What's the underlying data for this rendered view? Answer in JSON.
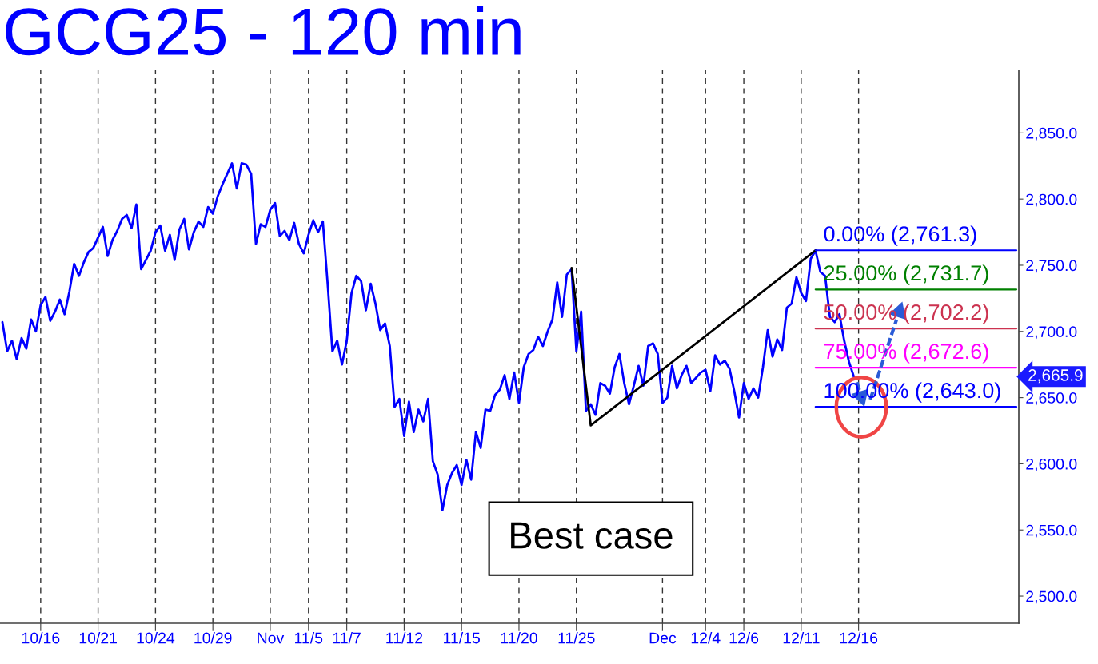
{
  "chart_data": {
    "type": "line",
    "title": "GCG25 - 120 min",
    "categories": [
      null,
      null,
      null,
      null,
      null,
      null,
      null,
      null,
      "10/16",
      null,
      null,
      null,
      null,
      null,
      null,
      null,
      null,
      null,
      null,
      null,
      "10/21",
      null,
      null,
      null,
      null,
      null,
      null,
      null,
      null,
      null,
      null,
      null,
      "10/24",
      null,
      null,
      null,
      null,
      null,
      null,
      null,
      null,
      null,
      null,
      null,
      "10/29",
      null,
      null,
      null,
      null,
      null,
      null,
      null,
      null,
      null,
      null,
      null,
      "Nov",
      null,
      null,
      null,
      null,
      null,
      null,
      null,
      "11/5",
      null,
      null,
      null,
      null,
      null,
      null,
      null,
      "11/7",
      null,
      null,
      null,
      null,
      null,
      null,
      null,
      null,
      null,
      null,
      null,
      "11/12",
      null,
      null,
      null,
      null,
      null,
      null,
      null,
      null,
      null,
      null,
      null,
      "11/15",
      null,
      null,
      null,
      null,
      null,
      null,
      null,
      null,
      null,
      null,
      null,
      "11/20",
      null,
      null,
      null,
      null,
      null,
      null,
      null,
      null,
      null,
      null,
      null,
      "11/25",
      null,
      null,
      null,
      null,
      null,
      null,
      null,
      null,
      null,
      null,
      null,
      null,
      null,
      null,
      null,
      null,
      null,
      "Dec",
      null,
      null,
      null,
      null,
      null,
      null,
      null,
      null,
      "12/4",
      null,
      null,
      null,
      null,
      null,
      null,
      null,
      "12/6",
      null,
      null,
      null,
      null,
      null,
      null,
      null,
      null,
      null,
      null,
      null,
      "12/11",
      null,
      null,
      null,
      null,
      null,
      null,
      null,
      null,
      null,
      null,
      null,
      "12/16",
      null,
      null,
      null,
      null,
      null,
      null,
      null,
      null,
      null,
      null,
      null,
      null,
      null,
      null,
      null,
      null,
      null,
      null,
      null,
      null,
      null,
      null,
      null,
      null,
      null,
      null,
      null,
      null,
      null,
      null,
      null,
      null,
      null
    ],
    "ylim": [
      2479.5,
      2897.3
    ],
    "yticks": [
      {
        "value": 2500,
        "label": "2,500.0"
      },
      {
        "value": 2550,
        "label": "2,550.0"
      },
      {
        "value": 2600,
        "label": "2,600.0"
      },
      {
        "value": 2650,
        "label": "2,650.0"
      },
      {
        "value": 2700,
        "label": "2,700.0"
      },
      {
        "value": 2750,
        "label": "2,750.0"
      },
      {
        "value": 2800,
        "label": "2,800.0"
      },
      {
        "value": 2850,
        "label": "2,850.0"
      }
    ],
    "grid": "x",
    "series": [
      {
        "color": "#0000ff",
        "values": [
          2707,
          2685,
          2693,
          2679,
          2695,
          2687,
          2709,
          2700,
          2720,
          2726,
          2708,
          2715,
          2724,
          2713,
          2730,
          2751,
          2742,
          2752,
          2760,
          2763,
          2771,
          2779,
          2757,
          2769,
          2776,
          2785,
          2788,
          2778,
          2796,
          2747,
          2754,
          2761,
          2775,
          2780,
          2761,
          2773,
          2754,
          2777,
          2785,
          2762,
          2775,
          2783,
          2779,
          2794,
          2789,
          2802,
          2811,
          2819,
          2827,
          2808,
          2827,
          2826,
          2819,
          2766,
          2781,
          2779,
          2792,
          2797,
          2772,
          2776,
          2769,
          2782,
          2766,
          2759,
          2773,
          2784,
          2775,
          2783,
          2736,
          2685,
          2693,
          2675,
          2693,
          2729,
          2742,
          2738,
          2716,
          2736,
          2721,
          2701,
          2706,
          2689,
          2643,
          2649,
          2621,
          2647,
          2624,
          2641,
          2632,
          2649,
          2602,
          2592,
          2565,
          2584,
          2593,
          2599,
          2584,
          2603,
          2588,
          2624,
          2612,
          2641,
          2640,
          2652,
          2656,
          2667,
          2649,
          2669,
          2646,
          2673,
          2683,
          2686,
          2696,
          2689,
          2700,
          2709,
          2737,
          2711,
          2743,
          2747,
          2685,
          2715,
          2640,
          2645,
          2637,
          2661,
          2659,
          2653,
          2673,
          2683,
          2661,
          2645,
          2659,
          2674,
          2659,
          2689,
          2691,
          2683,
          2646,
          2650,
          2674,
          2657,
          2667,
          2674,
          2661,
          2665,
          2669,
          2671,
          2655,
          2682,
          2675,
          2678,
          2672,
          2655,
          2635,
          2661,
          2649,
          2657,
          2650,
          2673,
          2701,
          2681,
          2694,
          2686,
          2718,
          2721,
          2741,
          2729,
          2723,
          2755,
          2761,
          2745,
          2742,
          2711,
          2707,
          2713,
          2693,
          2677,
          2665.9,
          null,
          null,
          null,
          null,
          null,
          null,
          null,
          null,
          null,
          null,
          null,
          null,
          null,
          null,
          null,
          null,
          null,
          null,
          null,
          null,
          null,
          null,
          null,
          null,
          null,
          null,
          null,
          null,
          null,
          null,
          null,
          null,
          null,
          null
        ]
      },
      {
        "type": "line",
        "color": "#000000",
        "values": [
          null,
          null,
          null,
          null,
          null,
          null,
          null,
          null,
          null,
          null,
          null,
          null,
          null,
          null,
          null,
          null,
          null,
          null,
          null,
          null,
          null,
          null,
          null,
          null,
          null,
          null,
          null,
          null,
          null,
          null,
          null,
          null,
          null,
          null,
          null,
          null,
          null,
          null,
          null,
          null,
          null,
          null,
          null,
          null,
          null,
          null,
          null,
          null,
          null,
          null,
          null,
          null,
          null,
          null,
          null,
          null,
          null,
          null,
          null,
          null,
          null,
          null,
          null,
          null,
          null,
          null,
          null,
          null,
          null,
          null,
          null,
          null,
          null,
          null,
          null,
          null,
          null,
          null,
          null,
          null,
          null,
          null,
          null,
          null,
          null,
          null,
          null,
          null,
          null,
          null,
          null,
          null,
          null,
          null,
          null,
          null,
          null,
          null,
          null,
          null,
          null,
          null,
          null,
          null,
          null,
          null,
          null,
          null,
          null,
          null,
          null,
          null,
          null,
          null,
          null,
          null,
          null,
          null,
          null,
          2748,
          null,
          null,
          null,
          2629,
          null,
          null,
          null,
          null,
          null,
          null,
          null,
          null,
          null,
          null,
          null,
          null,
          null,
          null,
          null,
          null,
          null,
          null,
          null,
          null,
          null,
          null,
          null,
          null,
          null,
          null,
          null,
          null,
          null,
          null,
          null,
          null,
          null,
          null,
          null,
          null,
          null,
          null,
          null,
          null,
          null,
          null,
          null,
          null,
          null,
          null,
          2761.3,
          null,
          null,
          null,
          null,
          null,
          null,
          null,
          null,
          null,
          null,
          null,
          null,
          null,
          null,
          null,
          null,
          null,
          null,
          null,
          null,
          null,
          null,
          null,
          null,
          null,
          null,
          null,
          null,
          null,
          null,
          null,
          null,
          null,
          null,
          null,
          null,
          null,
          null,
          null,
          null,
          null,
          null
        ]
      },
      {
        "type": "line",
        "name": "0.00% (2,761.3)",
        "color": "#0000ff",
        "values": [
          null,
          null,
          null,
          null,
          null,
          null,
          null,
          null,
          null,
          null,
          null,
          null,
          null,
          null,
          null,
          null,
          null,
          null,
          null,
          null,
          null,
          null,
          null,
          null,
          null,
          null,
          null,
          null,
          null,
          null,
          null,
          null,
          null,
          null,
          null,
          null,
          null,
          null,
          null,
          null,
          null,
          null,
          null,
          null,
          null,
          null,
          null,
          null,
          null,
          null,
          null,
          null,
          null,
          null,
          null,
          null,
          null,
          null,
          null,
          null,
          null,
          null,
          null,
          null,
          null,
          null,
          null,
          null,
          null,
          null,
          null,
          null,
          null,
          null,
          null,
          null,
          null,
          null,
          null,
          null,
          null,
          null,
          null,
          null,
          null,
          null,
          null,
          null,
          null,
          null,
          null,
          null,
          null,
          null,
          null,
          null,
          null,
          null,
          null,
          null,
          null,
          null,
          null,
          null,
          null,
          null,
          null,
          null,
          null,
          null,
          null,
          null,
          null,
          null,
          null,
          null,
          null,
          null,
          null,
          null,
          null,
          null,
          null,
          null,
          null,
          null,
          null,
          null,
          null,
          null,
          null,
          null,
          null,
          null,
          null,
          null,
          null,
          null,
          null,
          null,
          null,
          null,
          null,
          null,
          null,
          null,
          null,
          null,
          null,
          null,
          null,
          null,
          null,
          null,
          null,
          null,
          null,
          null,
          null,
          null,
          null,
          null,
          null,
          null,
          null,
          null,
          null,
          null,
          null,
          null,
          2761.3,
          2761.3,
          2761.3,
          2761.3,
          2761.3,
          2761.3,
          2761.3,
          2761.3,
          2761.3,
          2761.3,
          2761.3,
          2761.3,
          2761.3,
          2761.3,
          2761.3,
          2761.3,
          2761.3,
          2761.3,
          2761.3,
          2761.3,
          2761.3,
          2761.3,
          2761.3,
          2761.3,
          2761.3,
          2761.3,
          2761.3,
          2761.3,
          2761.3,
          2761.3,
          2761.3,
          2761.3,
          2761.3,
          2761.3,
          2761.3,
          2761.3,
          2761.3,
          2761.3,
          2761.3,
          2761.3,
          2761.3,
          2761.3,
          2761.3
        ]
      },
      {
        "type": "line",
        "name": "25.00% (2,731.7)",
        "color": "#008000",
        "values": [
          null,
          null,
          null,
          null,
          null,
          null,
          null,
          null,
          null,
          null,
          null,
          null,
          null,
          null,
          null,
          null,
          null,
          null,
          null,
          null,
          null,
          null,
          null,
          null,
          null,
          null,
          null,
          null,
          null,
          null,
          null,
          null,
          null,
          null,
          null,
          null,
          null,
          null,
          null,
          null,
          null,
          null,
          null,
          null,
          null,
          null,
          null,
          null,
          null,
          null,
          null,
          null,
          null,
          null,
          null,
          null,
          null,
          null,
          null,
          null,
          null,
          null,
          null,
          null,
          null,
          null,
          null,
          null,
          null,
          null,
          null,
          null,
          null,
          null,
          null,
          null,
          null,
          null,
          null,
          null,
          null,
          null,
          null,
          null,
          null,
          null,
          null,
          null,
          null,
          null,
          null,
          null,
          null,
          null,
          null,
          null,
          null,
          null,
          null,
          null,
          null,
          null,
          null,
          null,
          null,
          null,
          null,
          null,
          null,
          null,
          null,
          null,
          null,
          null,
          null,
          null,
          null,
          null,
          null,
          null,
          null,
          null,
          null,
          null,
          null,
          null,
          null,
          null,
          null,
          null,
          null,
          null,
          null,
          null,
          null,
          null,
          null,
          null,
          null,
          null,
          null,
          null,
          null,
          null,
          null,
          null,
          null,
          null,
          null,
          null,
          null,
          null,
          null,
          null,
          null,
          null,
          null,
          null,
          null,
          null,
          null,
          null,
          null,
          null,
          null,
          null,
          null,
          null,
          null,
          null,
          2731.7,
          2731.7,
          2731.7,
          2731.7,
          2731.7,
          2731.7,
          2731.7,
          2731.7,
          2731.7,
          2731.7,
          2731.7,
          2731.7,
          2731.7,
          2731.7,
          2731.7,
          2731.7,
          2731.7,
          2731.7,
          2731.7,
          2731.7,
          2731.7,
          2731.7,
          2731.7,
          2731.7,
          2731.7,
          2731.7,
          2731.7,
          2731.7,
          2731.7,
          2731.7,
          2731.7,
          2731.7,
          2731.7,
          2731.7,
          2731.7,
          2731.7,
          2731.7,
          2731.7,
          2731.7,
          2731.7,
          2731.7,
          2731.7,
          2731.7
        ]
      },
      {
        "type": "line",
        "name": "50.00% (2,702.2)",
        "color": "#cc3350",
        "values": [
          null,
          null,
          null,
          null,
          null,
          null,
          null,
          null,
          null,
          null,
          null,
          null,
          null,
          null,
          null,
          null,
          null,
          null,
          null,
          null,
          null,
          null,
          null,
          null,
          null,
          null,
          null,
          null,
          null,
          null,
          null,
          null,
          null,
          null,
          null,
          null,
          null,
          null,
          null,
          null,
          null,
          null,
          null,
          null,
          null,
          null,
          null,
          null,
          null,
          null,
          null,
          null,
          null,
          null,
          null,
          null,
          null,
          null,
          null,
          null,
          null,
          null,
          null,
          null,
          null,
          null,
          null,
          null,
          null,
          null,
          null,
          null,
          null,
          null,
          null,
          null,
          null,
          null,
          null,
          null,
          null,
          null,
          null,
          null,
          null,
          null,
          null,
          null,
          null,
          null,
          null,
          null,
          null,
          null,
          null,
          null,
          null,
          null,
          null,
          null,
          null,
          null,
          null,
          null,
          null,
          null,
          null,
          null,
          null,
          null,
          null,
          null,
          null,
          null,
          null,
          null,
          null,
          null,
          null,
          null,
          null,
          null,
          null,
          null,
          null,
          null,
          null,
          null,
          null,
          null,
          null,
          null,
          null,
          null,
          null,
          null,
          null,
          null,
          null,
          null,
          null,
          null,
          null,
          null,
          null,
          null,
          null,
          null,
          null,
          null,
          null,
          null,
          null,
          null,
          null,
          null,
          null,
          null,
          null,
          null,
          null,
          null,
          null,
          null,
          null,
          null,
          null,
          null,
          null,
          null,
          2702.2,
          2702.2,
          2702.2,
          2702.2,
          2702.2,
          2702.2,
          2702.2,
          2702.2,
          2702.2,
          2702.2,
          2702.2,
          2702.2,
          2702.2,
          2702.2,
          2702.2,
          2702.2,
          2702.2,
          2702.2,
          2702.2,
          2702.2,
          2702.2,
          2702.2,
          2702.2,
          2702.2,
          2702.2,
          2702.2,
          2702.2,
          2702.2,
          2702.2,
          2702.2,
          2702.2,
          2702.2,
          2702.2,
          2702.2,
          2702.2,
          2702.2,
          2702.2,
          2702.2,
          2702.2,
          2702.2,
          2702.2,
          2702.2,
          2702.2
        ]
      },
      {
        "type": "line",
        "name": "75.00% (2,672.6)",
        "color": "#ff00ff",
        "values": [
          null,
          null,
          null,
          null,
          null,
          null,
          null,
          null,
          null,
          null,
          null,
          null,
          null,
          null,
          null,
          null,
          null,
          null,
          null,
          null,
          null,
          null,
          null,
          null,
          null,
          null,
          null,
          null,
          null,
          null,
          null,
          null,
          null,
          null,
          null,
          null,
          null,
          null,
          null,
          null,
          null,
          null,
          null,
          null,
          null,
          null,
          null,
          null,
          null,
          null,
          null,
          null,
          null,
          null,
          null,
          null,
          null,
          null,
          null,
          null,
          null,
          null,
          null,
          null,
          null,
          null,
          null,
          null,
          null,
          null,
          null,
          null,
          null,
          null,
          null,
          null,
          null,
          null,
          null,
          null,
          null,
          null,
          null,
          null,
          null,
          null,
          null,
          null,
          null,
          null,
          null,
          null,
          null,
          null,
          null,
          null,
          null,
          null,
          null,
          null,
          null,
          null,
          null,
          null,
          null,
          null,
          null,
          null,
          null,
          null,
          null,
          null,
          null,
          null,
          null,
          null,
          null,
          null,
          null,
          null,
          null,
          null,
          null,
          null,
          null,
          null,
          null,
          null,
          null,
          null,
          null,
          null,
          null,
          null,
          null,
          null,
          null,
          null,
          null,
          null,
          null,
          null,
          null,
          null,
          null,
          null,
          null,
          null,
          null,
          null,
          null,
          null,
          null,
          null,
          null,
          null,
          null,
          null,
          null,
          null,
          null,
          null,
          null,
          null,
          null,
          null,
          null,
          null,
          null,
          null,
          2672.6,
          2672.6,
          2672.6,
          2672.6,
          2672.6,
          2672.6,
          2672.6,
          2672.6,
          2672.6,
          2672.6,
          2672.6,
          2672.6,
          2672.6,
          2672.6,
          2672.6,
          2672.6,
          2672.6,
          2672.6,
          2672.6,
          2672.6,
          2672.6,
          2672.6,
          2672.6,
          2672.6,
          2672.6,
          2672.6,
          2672.6,
          2672.6,
          2672.6,
          2672.6,
          2672.6,
          2672.6,
          2672.6,
          2672.6,
          2672.6,
          2672.6,
          2672.6,
          2672.6,
          2672.6,
          2672.6,
          2672.6,
          2672.6,
          2672.6
        ]
      },
      {
        "type": "line",
        "name": "100.00% (2,643.0)",
        "color": "#0000ff",
        "values": [
          null,
          null,
          null,
          null,
          null,
          null,
          null,
          null,
          null,
          null,
          null,
          null,
          null,
          null,
          null,
          null,
          null,
          null,
          null,
          null,
          null,
          null,
          null,
          null,
          null,
          null,
          null,
          null,
          null,
          null,
          null,
          null,
          null,
          null,
          null,
          null,
          null,
          null,
          null,
          null,
          null,
          null,
          null,
          null,
          null,
          null,
          null,
          null,
          null,
          null,
          null,
          null,
          null,
          null,
          null,
          null,
          null,
          null,
          null,
          null,
          null,
          null,
          null,
          null,
          null,
          null,
          null,
          null,
          null,
          null,
          null,
          null,
          null,
          null,
          null,
          null,
          null,
          null,
          null,
          null,
          null,
          null,
          null,
          null,
          null,
          null,
          null,
          null,
          null,
          null,
          null,
          null,
          null,
          null,
          null,
          null,
          null,
          null,
          null,
          null,
          null,
          null,
          null,
          null,
          null,
          null,
          null,
          null,
          null,
          null,
          null,
          null,
          null,
          null,
          null,
          null,
          null,
          null,
          null,
          null,
          null,
          null,
          null,
          null,
          null,
          null,
          null,
          null,
          null,
          null,
          null,
          null,
          null,
          null,
          null,
          null,
          null,
          null,
          null,
          null,
          null,
          null,
          null,
          null,
          null,
          null,
          null,
          null,
          null,
          null,
          null,
          null,
          null,
          null,
          null,
          null,
          null,
          null,
          null,
          null,
          null,
          null,
          null,
          null,
          null,
          null,
          null,
          null,
          null,
          null,
          2643.0,
          2643.0,
          2643.0,
          2643.0,
          2643.0,
          2643.0,
          2643.0,
          2643.0,
          2643.0,
          2643.0,
          2643.0,
          2643.0,
          2643.0,
          2643.0,
          2643.0,
          2643.0,
          2643.0,
          2643.0,
          2643.0,
          2643.0,
          2643.0,
          2643.0,
          2643.0,
          2643.0,
          2643.0,
          2643.0,
          2643.0,
          2643.0,
          2643.0,
          2643.0,
          2643.0,
          2643.0,
          2643.0,
          2643.0,
          2643.0,
          2643.0,
          2643.0,
          2643.0,
          2643.0,
          2643.0,
          2643.0,
          2643.0,
          2643.0
        ]
      }
    ],
    "annotations": [
      "Best case",
      "2,665.9"
    ]
  }
}
